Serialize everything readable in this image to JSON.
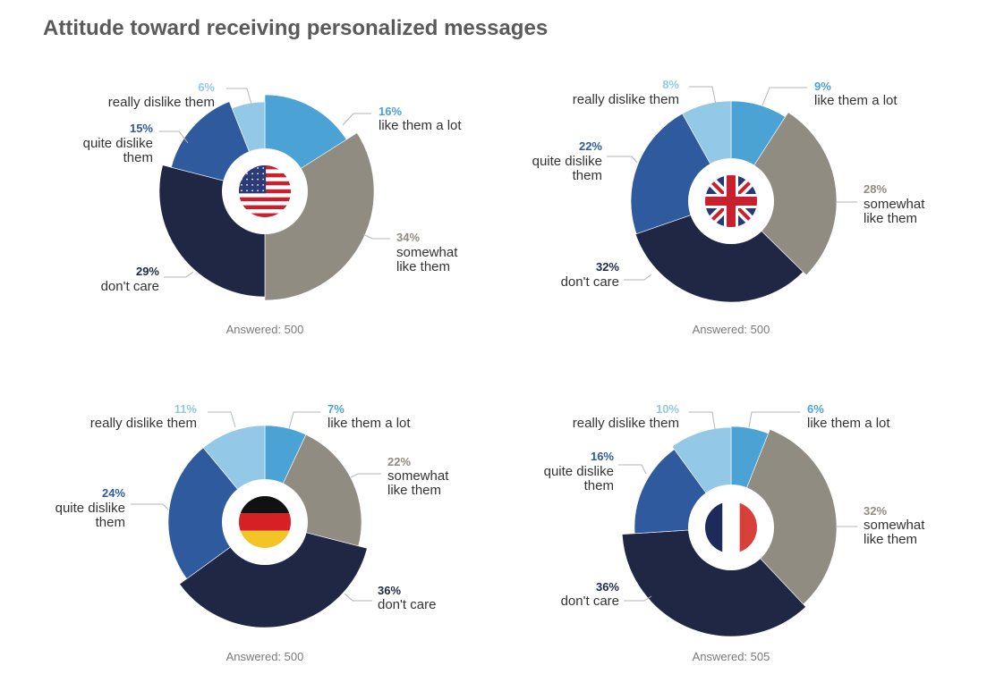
{
  "title": "Attitude toward receiving personalized messages",
  "colors": {
    "like_a_lot": "#4aa3d4",
    "somewhat_like": "#918c82",
    "dont_care": "#1f2745",
    "quite_dislike": "#2f5b9e",
    "really_dislike": "#93c9e6",
    "leader_line": "#b5b5b5",
    "answered_text": "#7a7a7a",
    "label_text": "#333333"
  },
  "chart_data": [
    {
      "type": "pie",
      "country": "United States",
      "flag": "us-flag",
      "answered_label": "Answered: 500",
      "slices": [
        {
          "key": "like_a_lot",
          "value": 16,
          "pct_label": "16%",
          "label": [
            "like them a lot"
          ]
        },
        {
          "key": "somewhat_like",
          "value": 34,
          "pct_label": "34%",
          "label": [
            "somewhat",
            "like them"
          ]
        },
        {
          "key": "dont_care",
          "value": 29,
          "pct_label": "29%",
          "label": [
            "don't care"
          ]
        },
        {
          "key": "quite_dislike",
          "value": 15,
          "pct_label": "15%",
          "label": [
            "quite dislike",
            "them"
          ]
        },
        {
          "key": "really_dislike",
          "value": 6,
          "pct_label": "6%",
          "label": [
            "really dislike them"
          ]
        }
      ]
    },
    {
      "type": "pie",
      "country": "United Kingdom",
      "flag": "uk-flag",
      "answered_label": "Answered: 500",
      "slices": [
        {
          "key": "like_a_lot",
          "value": 9,
          "pct_label": "9%",
          "label": [
            "like them a lot"
          ]
        },
        {
          "key": "somewhat_like",
          "value": 28,
          "pct_label": "28%",
          "label": [
            "somewhat",
            "like them"
          ]
        },
        {
          "key": "dont_care",
          "value": 32,
          "pct_label": "32%",
          "label": [
            "don't care"
          ]
        },
        {
          "key": "quite_dislike",
          "value": 22,
          "pct_label": "22%",
          "label": [
            "quite dislike",
            "them"
          ]
        },
        {
          "key": "really_dislike",
          "value": 8,
          "pct_label": "8%",
          "label": [
            "really dislike them"
          ]
        }
      ]
    },
    {
      "type": "pie",
      "country": "Germany",
      "flag": "de-flag",
      "answered_label": "Answered: 500",
      "slices": [
        {
          "key": "like_a_lot",
          "value": 7,
          "pct_label": "7%",
          "label": [
            "like them a lot"
          ]
        },
        {
          "key": "somewhat_like",
          "value": 22,
          "pct_label": "22%",
          "label": [
            "somewhat",
            "like them"
          ]
        },
        {
          "key": "dont_care",
          "value": 36,
          "pct_label": "36%",
          "label": [
            "don't care"
          ]
        },
        {
          "key": "quite_dislike",
          "value": 24,
          "pct_label": "24%",
          "label": [
            "quite dislike",
            "them"
          ]
        },
        {
          "key": "really_dislike",
          "value": 11,
          "pct_label": "11%",
          "label": [
            "really dislike them"
          ]
        }
      ]
    },
    {
      "type": "pie",
      "country": "France",
      "flag": "fr-flag",
      "answered_label": "Answered: 505",
      "slices": [
        {
          "key": "like_a_lot",
          "value": 6,
          "pct_label": "6%",
          "label": [
            "like them a lot"
          ]
        },
        {
          "key": "somewhat_like",
          "value": 32,
          "pct_label": "32%",
          "label": [
            "somewhat",
            "like them"
          ]
        },
        {
          "key": "dont_care",
          "value": 36,
          "pct_label": "36%",
          "label": [
            "don't care"
          ]
        },
        {
          "key": "quite_dislike",
          "value": 16,
          "pct_label": "16%",
          "label": [
            "quite dislike",
            "them"
          ]
        },
        {
          "key": "really_dislike",
          "value": 10,
          "pct_label": "10%",
          "label": [
            "really dislike them"
          ]
        }
      ]
    }
  ]
}
